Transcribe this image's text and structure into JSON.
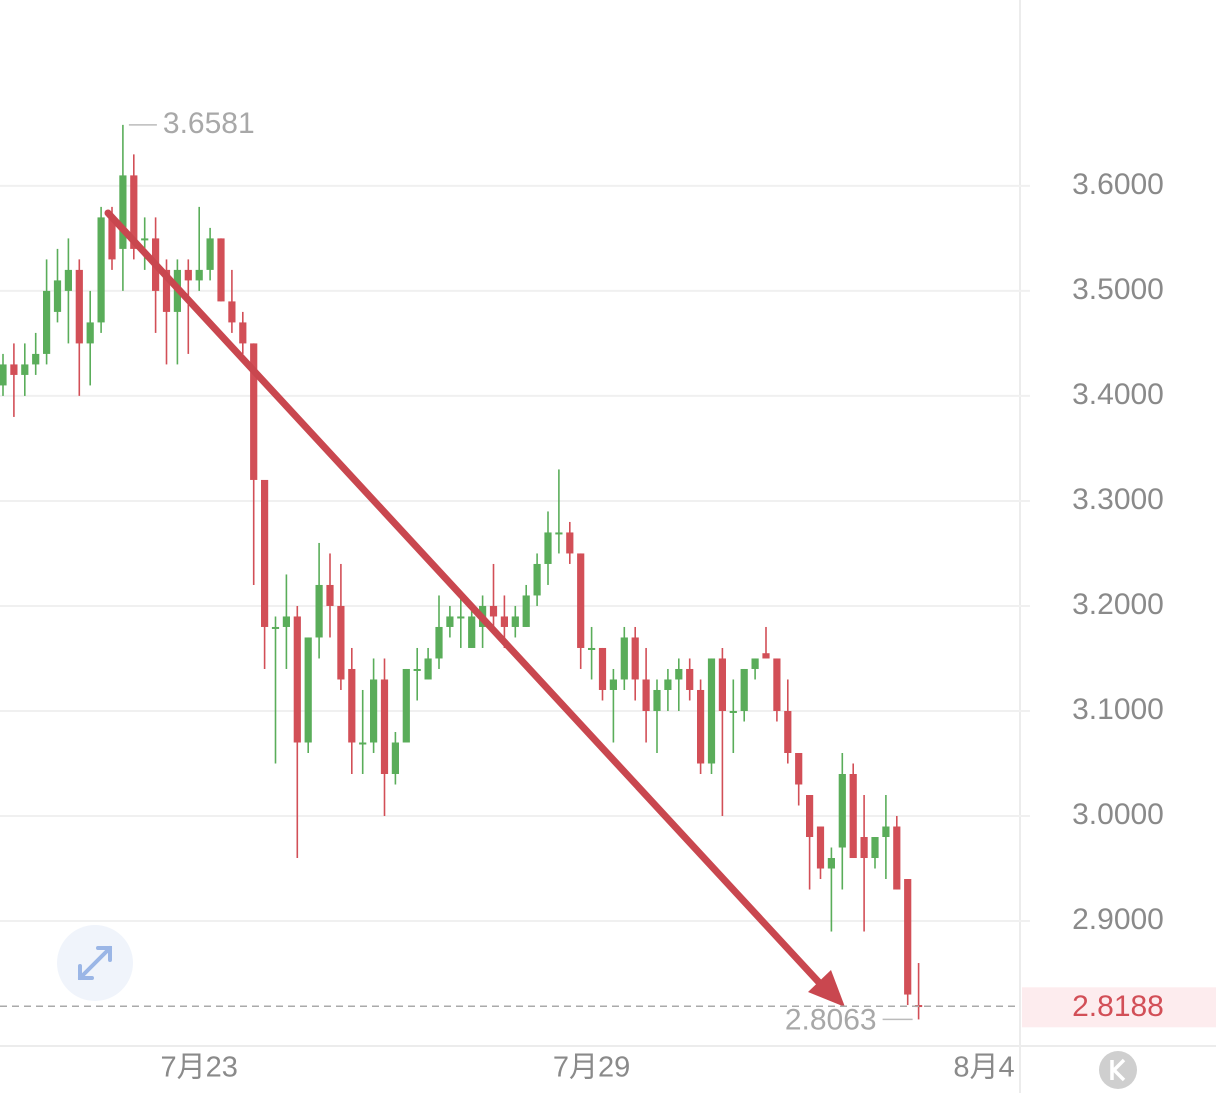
{
  "chart_data": {
    "type": "candlestick",
    "categories": [
      null,
      null,
      null,
      null,
      null,
      null,
      null,
      null,
      null,
      null,
      null,
      null,
      null,
      null,
      null,
      null,
      null,
      null,
      "7月23",
      null,
      null,
      null,
      null,
      null,
      null,
      null,
      null,
      null,
      null,
      null,
      null,
      null,
      null,
      null,
      null,
      null,
      null,
      null,
      null,
      null,
      null,
      null,
      null,
      null,
      null,
      null,
      null,
      null,
      null,
      null,
      null,
      null,
      null,
      null,
      "7月29",
      null,
      null,
      null,
      null,
      null,
      null,
      null,
      null,
      null,
      null,
      null,
      null,
      null,
      null,
      null,
      null,
      null,
      null,
      null,
      null,
      null,
      null,
      null,
      null,
      null,
      null,
      null,
      null,
      null,
      null,
      null,
      null,
      null,
      null,
      null,
      "8月4"
    ],
    "open": [
      3.41,
      3.43,
      3.42,
      3.43,
      3.44,
      3.48,
      3.5,
      3.52,
      3.45,
      3.47,
      3.57,
      3.54,
      3.61,
      3.55,
      3.55,
      3.52,
      3.48,
      3.52,
      3.51,
      3.52,
      3.55,
      3.49,
      3.47,
      3.45,
      3.32,
      3.18,
      3.18,
      3.19,
      3.07,
      3.17,
      3.22,
      3.2,
      3.14,
      3.07,
      3.07,
      3.13,
      3.04,
      3.07,
      3.14,
      3.13,
      3.15,
      3.18,
      3.19,
      3.16,
      3.18,
      3.2,
      3.19,
      3.18,
      3.18,
      3.21,
      3.24,
      3.27,
      3.27,
      3.25,
      3.16,
      3.16,
      3.12,
      3.13,
      3.17,
      3.13,
      3.1,
      3.12,
      3.13,
      3.14,
      3.12,
      3.05,
      3.15,
      3.1,
      3.1,
      3.14,
      3.155,
      3.15,
      3.1,
      3.06,
      3.02,
      2.99,
      2.95,
      2.97,
      3.04,
      2.98,
      2.96,
      2.98,
      2.99,
      2.94,
      2.82,
      null,
      null,
      null,
      null,
      null,
      null
    ],
    "high": [
      3.44,
      3.45,
      3.45,
      3.46,
      3.53,
      3.54,
      3.55,
      3.53,
      3.5,
      3.58,
      3.58,
      3.6581,
      3.63,
      3.57,
      3.57,
      3.53,
      3.53,
      3.53,
      3.58,
      3.56,
      3.55,
      3.52,
      3.48,
      3.45,
      3.32,
      3.19,
      3.23,
      3.2,
      3.17,
      3.26,
      3.25,
      3.24,
      3.16,
      3.12,
      3.15,
      3.15,
      3.08,
      3.14,
      3.16,
      3.16,
      3.21,
      3.2,
      3.21,
      3.2,
      3.21,
      3.24,
      3.21,
      3.2,
      3.22,
      3.25,
      3.29,
      3.33,
      3.28,
      3.25,
      3.18,
      3.16,
      3.14,
      3.18,
      3.18,
      3.16,
      3.13,
      3.14,
      3.15,
      3.15,
      3.13,
      3.15,
      3.16,
      3.13,
      3.14,
      3.15,
      3.18,
      3.15,
      3.13,
      3.06,
      3.02,
      2.99,
      2.97,
      3.06,
      3.05,
      3.02,
      2.98,
      3.02,
      3.0,
      2.94,
      2.86,
      null,
      null,
      null,
      null,
      null,
      null
    ],
    "low": [
      3.4,
      3.38,
      3.4,
      3.42,
      3.43,
      3.47,
      3.45,
      3.4,
      3.41,
      3.46,
      3.52,
      3.5,
      3.53,
      3.52,
      3.46,
      3.43,
      3.43,
      3.44,
      3.5,
      3.51,
      3.49,
      3.46,
      3.44,
      3.22,
      3.14,
      3.05,
      3.14,
      2.96,
      3.06,
      3.15,
      3.17,
      3.12,
      3.04,
      3.04,
      3.06,
      3.0,
      3.03,
      3.07,
      3.11,
      3.13,
      3.14,
      3.17,
      3.16,
      3.16,
      3.16,
      3.18,
      3.16,
      3.17,
      3.18,
      3.2,
      3.22,
      3.25,
      3.24,
      3.14,
      3.13,
      3.11,
      3.07,
      3.12,
      3.11,
      3.07,
      3.06,
      3.1,
      3.1,
      3.11,
      3.04,
      3.04,
      3.0,
      3.06,
      3.09,
      3.13,
      3.15,
      3.09,
      3.05,
      3.01,
      2.93,
      2.94,
      2.89,
      2.93,
      2.96,
      2.89,
      2.95,
      2.94,
      2.93,
      2.82,
      2.8063,
      null,
      null,
      null,
      null,
      null,
      null
    ],
    "close": [
      3.43,
      3.42,
      3.43,
      3.44,
      3.5,
      3.51,
      3.52,
      3.45,
      3.47,
      3.57,
      3.53,
      3.61,
      3.54,
      3.55,
      3.5,
      3.48,
      3.52,
      3.51,
      3.52,
      3.55,
      3.49,
      3.47,
      3.45,
      3.32,
      3.18,
      3.18,
      3.19,
      3.07,
      3.17,
      3.22,
      3.2,
      3.13,
      3.07,
      3.07,
      3.13,
      3.04,
      3.07,
      3.14,
      3.14,
      3.15,
      3.18,
      3.19,
      3.19,
      3.19,
      3.2,
      3.19,
      3.18,
      3.19,
      3.21,
      3.24,
      3.27,
      3.27,
      3.25,
      3.16,
      3.16,
      3.12,
      3.13,
      3.17,
      3.13,
      3.1,
      3.12,
      3.13,
      3.14,
      3.12,
      3.05,
      3.15,
      3.1,
      3.1,
      3.14,
      3.15,
      3.15,
      3.1,
      3.06,
      3.03,
      2.98,
      2.95,
      2.96,
      3.04,
      2.96,
      2.96,
      2.98,
      2.99,
      2.93,
      2.83,
      2.8188,
      null,
      null,
      null,
      null,
      null,
      null
    ],
    "up_color": "#5aad5a",
    "down_color": "#d24f57",
    "ylim": [
      2.781,
      3.777
    ],
    "yticks": [
      {
        "value": 2.9,
        "label": "2.9000"
      },
      {
        "value": 3.0,
        "label": "3.0000"
      },
      {
        "value": 3.1,
        "label": "3.1000"
      },
      {
        "value": 3.2,
        "label": "3.2000"
      },
      {
        "value": 3.3,
        "label": "3.3000"
      },
      {
        "value": 3.4,
        "label": "3.4000"
      },
      {
        "value": 3.5,
        "label": "3.5000"
      },
      {
        "value": 3.6,
        "label": "3.6000"
      }
    ],
    "grid": true
  }
}
